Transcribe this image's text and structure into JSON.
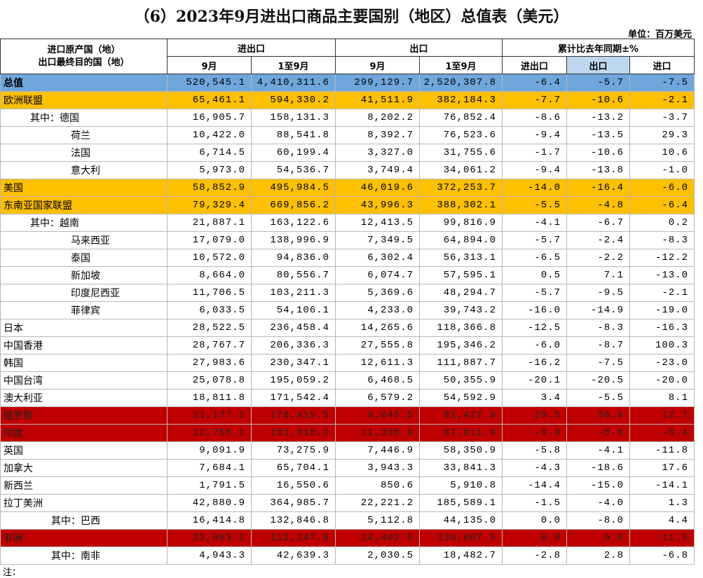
{
  "title": "（6）2023年9月进出口商品主要国别（地区）总值表（美元）",
  "unit": "单位：百万美元",
  "header": {
    "corner": [
      "进口原产国（地）",
      "出口最终目的国（地）"
    ],
    "groups": [
      "进出口",
      "出口",
      "累计比去年同期±%"
    ],
    "subheaders": [
      "9月",
      "1至9月",
      "9月",
      "1至9月",
      "进出口",
      "出口",
      "进口"
    ]
  },
  "table": {
    "rows": [
      [
        "总值",
        "520,545.1",
        "4,410,311.6",
        "299,129.7",
        "2,520,307.8",
        "-6.4",
        "-5.7",
        "-7.5"
      ],
      [
        "欧洲联盟",
        "65,461.1",
        "594,330.2",
        "41,511.9",
        "382,184.3",
        "-7.7",
        "-10.6",
        "-2.1"
      ],
      [
        "其中：德国",
        "16,905.7",
        "158,131.3",
        "8,202.2",
        "76,852.4",
        "-8.6",
        "-13.2",
        "-3.7"
      ],
      [
        "荷兰",
        "10,422.0",
        "88,541.8",
        "8,392.7",
        "76,523.6",
        "-9.4",
        "-13.5",
        "29.3"
      ],
      [
        "法国",
        "6,714.5",
        "60,199.4",
        "3,327.0",
        "31,755.6",
        "-1.7",
        "-10.6",
        "10.6"
      ],
      [
        "意大利",
        "5,973.0",
        "54,536.7",
        "3,749.4",
        "34,061.2",
        "-9.4",
        "-13.8",
        "-1.0"
      ],
      [
        "美国",
        "58,852.9",
        "495,984.5",
        "46,019.6",
        "372,253.7",
        "-14.0",
        "-16.4",
        "-6.0"
      ],
      [
        "东南亚国家联盟",
        "79,329.4",
        "669,856.2",
        "43,996.3",
        "388,302.1",
        "-5.5",
        "-4.8",
        "-6.4"
      ],
      [
        "其中：越南",
        "21,887.1",
        "163,122.6",
        "12,413.5",
        "99,816.9",
        "-4.1",
        "-6.7",
        "0.2"
      ],
      [
        "马来西亚",
        "17,079.0",
        "138,996.9",
        "7,349.5",
        "64,894.0",
        "-5.7",
        "-2.4",
        "-8.3"
      ],
      [
        "泰国",
        "10,572.0",
        "94,836.0",
        "6,302.4",
        "56,313.1",
        "-6.5",
        "-2.2",
        "-12.2"
      ],
      [
        "新加坡",
        "8,664.0",
        "80,556.7",
        "6,074.7",
        "57,595.1",
        "0.5",
        "7.1",
        "-13.0"
      ],
      [
        "印度尼西亚",
        "11,706.5",
        "103,211.3",
        "5,369.6",
        "48,294.7",
        "-5.7",
        "-9.5",
        "-2.1"
      ],
      [
        "菲律宾",
        "6,033.5",
        "54,106.1",
        "4,233.0",
        "39,743.2",
        "-16.0",
        "-14.9",
        "-19.0"
      ],
      [
        "日本",
        "28,522.5",
        "236,458.4",
        "14,265.6",
        "118,366.8",
        "-12.5",
        "-8.3",
        "-16.3"
      ],
      [
        "中国香港",
        "28,767.7",
        "206,336.3",
        "27,555.8",
        "195,346.2",
        "-6.0",
        "-8.7",
        "100.3"
      ],
      [
        "韩国",
        "27,983.6",
        "230,347.1",
        "12,611.3",
        "111,887.7",
        "-16.2",
        "-7.5",
        "-23.0"
      ],
      [
        "中国台湾",
        "25,078.8",
        "195,059.2",
        "6,468.5",
        "50,355.9",
        "-20.1",
        "-20.5",
        "-20.0"
      ],
      [
        "澳大利亚",
        "18,811.8",
        "171,542.4",
        "6,579.2",
        "54,592.9",
        "3.4",
        "-5.5",
        "8.1"
      ],
      [
        "俄罗斯",
        "21,177.1",
        "176,415.5",
        "9,645.5",
        "81,427.9",
        "29.5",
        "56.9",
        "12.7"
      ],
      [
        "印度",
        "12,750.1",
        "101,810.3",
        "11,330.9",
        "87,911.9",
        "-0.9",
        "-0.9",
        "-0.4"
      ],
      [
        "英国",
        "9,091.9",
        "73,275.9",
        "7,446.9",
        "58,350.9",
        "-5.8",
        "-4.1",
        "-11.8"
      ],
      [
        "加拿大",
        "7,684.1",
        "65,704.1",
        "3,943.3",
        "33,841.3",
        "-4.3",
        "-18.6",
        "17.6"
      ],
      [
        "新西兰",
        "1,791.5",
        "16,550.6",
        "850.6",
        "5,910.8",
        "-14.4",
        "-15.0",
        "-14.1"
      ],
      [
        "拉丁美洲",
        "42,880.9",
        "364,985.7",
        "22,221.2",
        "185,589.1",
        "-1.5",
        "-4.0",
        "1.3"
      ],
      [
        "其中：巴西",
        "16,414.8",
        "132,846.8",
        "5,112.8",
        "44,135.0",
        "0.0",
        "-8.0",
        "4.4"
      ],
      [
        "非洲",
        "23,863.2",
        "212,147.9",
        "14,402.5",
        "130,607.5",
        "0.0",
        "9.0",
        "-11.5"
      ],
      [
        "其中：南非",
        "4,943.3",
        "42,639.3",
        "2,030.5",
        "18,482.7",
        "-2.8",
        "2.8",
        "-6.8"
      ]
    ]
  },
  "note": "注："
}
